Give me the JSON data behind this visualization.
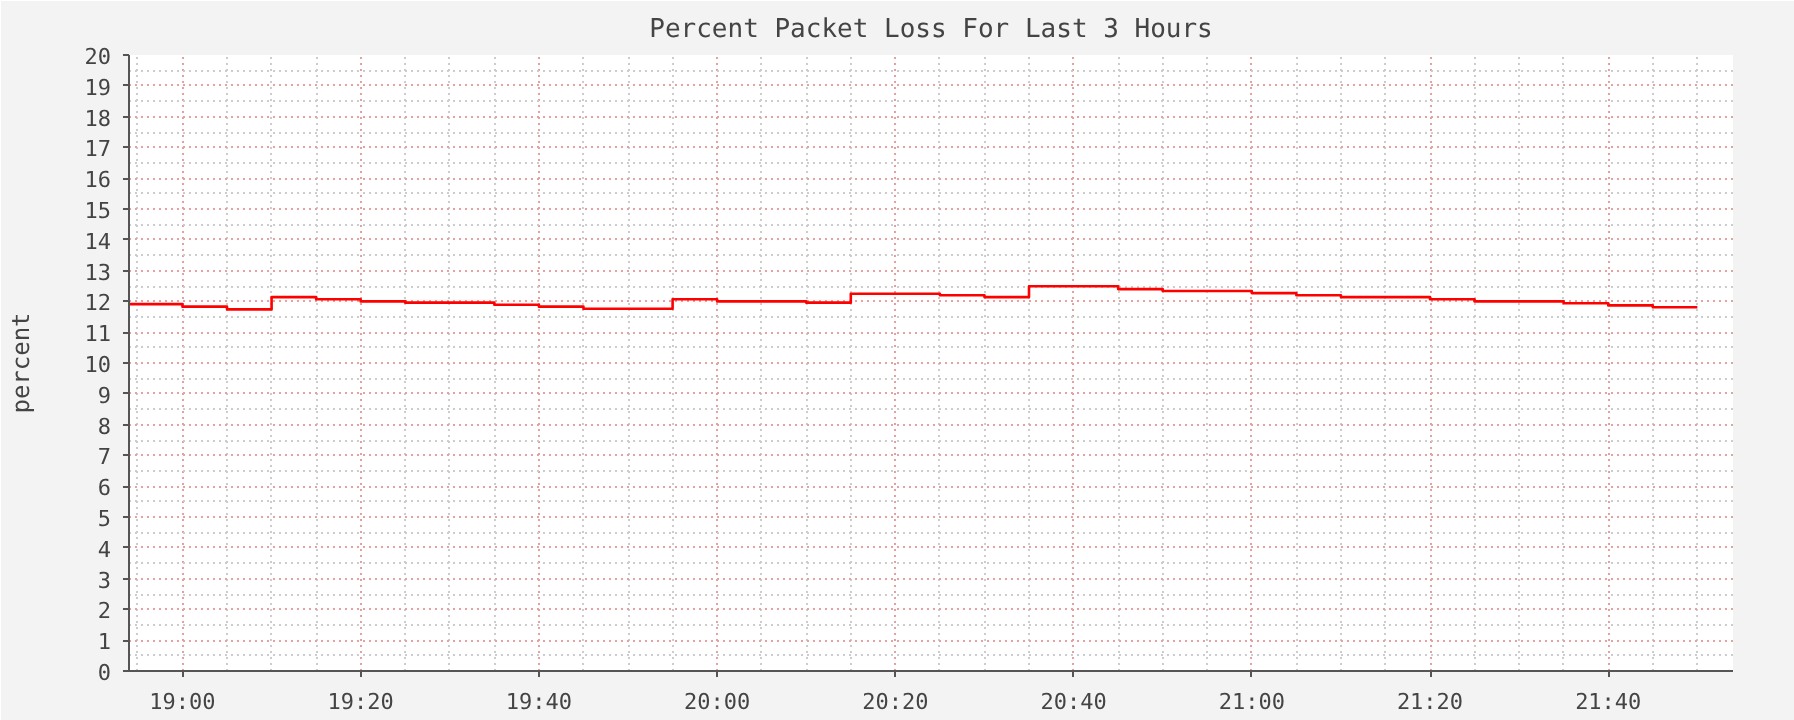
{
  "chart_data": {
    "type": "step",
    "title": "Percent Packet Loss For Last 3 Hours",
    "ylabel": "percent",
    "x": [
      18.9,
      19.0,
      19.0833,
      19.1667,
      19.25,
      19.3333,
      19.4167,
      19.5833,
      19.6667,
      19.75,
      19.9167,
      20.0,
      20.1667,
      20.25,
      20.4167,
      20.5,
      20.5833,
      20.75,
      20.8333,
      21.0,
      21.0833,
      21.1667,
      21.3333,
      21.4167,
      21.5833,
      21.6667,
      21.75,
      21.8333
    ],
    "series": [
      {
        "color": "#ff0000",
        "values": [
          11.91,
          11.83,
          11.74,
          12.14,
          12.07,
          12.0,
          11.96,
          11.89,
          11.83,
          11.76,
          12.07,
          12.0,
          11.96,
          12.25,
          12.2,
          12.14,
          12.49,
          12.4,
          12.34,
          12.27,
          12.2,
          12.14,
          12.07,
          12.0,
          11.94,
          11.87,
          11.81,
          11.81
        ]
      }
    ],
    "xlim": [
      18.9,
      21.9
    ],
    "xticks": [
      {
        "value": 19.0,
        "label": "19:00"
      },
      {
        "value": 19.3333,
        "label": "19:20"
      },
      {
        "value": 19.6667,
        "label": "19:40"
      },
      {
        "value": 20.0,
        "label": "20:00"
      },
      {
        "value": 20.3333,
        "label": "20:20"
      },
      {
        "value": 20.6667,
        "label": "20:40"
      },
      {
        "value": 21.0,
        "label": "21:00"
      },
      {
        "value": 21.3333,
        "label": "21:20"
      },
      {
        "value": 21.6667,
        "label": "21:40"
      }
    ],
    "ylim": [
      0,
      20
    ],
    "yticks": [
      0,
      1,
      2,
      3,
      4,
      5,
      6,
      7,
      8,
      9,
      10,
      11,
      12,
      13,
      14,
      15,
      16,
      17,
      18,
      19,
      20
    ],
    "grid": true
  }
}
